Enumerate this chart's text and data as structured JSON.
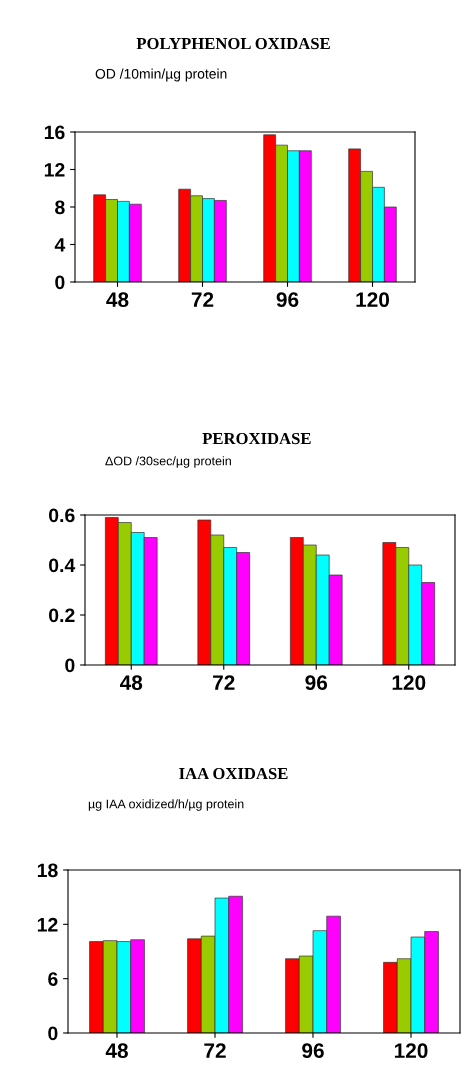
{
  "chart_data": [
    {
      "type": "bar",
      "title": "POLYPHENOL OXIDASE",
      "subtitle": "OD /10min/µg protein",
      "categories": [
        "48",
        "72",
        "96",
        "120"
      ],
      "series": [
        {
          "color": "#ff0000",
          "values": [
            9.3,
            9.9,
            15.7,
            14.2
          ]
        },
        {
          "color": "#99cc00",
          "values": [
            8.8,
            9.2,
            14.6,
            11.8
          ]
        },
        {
          "color": "#00ffff",
          "values": [
            8.6,
            8.9,
            14.0,
            10.1
          ]
        },
        {
          "color": "#ff00ff",
          "values": [
            8.3,
            8.7,
            14.0,
            8.0
          ]
        }
      ],
      "ylim": [
        0,
        16
      ],
      "yticks": [
        0,
        4,
        8,
        12,
        16
      ],
      "grid": false,
      "legend": false
    },
    {
      "type": "bar",
      "title": "PEROXIDASE",
      "subtitle": "ΔOD /30sec/µg protein",
      "categories": [
        "48",
        "72",
        "96",
        "120"
      ],
      "series": [
        {
          "color": "#ff0000",
          "values": [
            0.59,
            0.58,
            0.51,
            0.49
          ]
        },
        {
          "color": "#99cc00",
          "values": [
            0.57,
            0.52,
            0.48,
            0.47
          ]
        },
        {
          "color": "#00ffff",
          "values": [
            0.53,
            0.47,
            0.44,
            0.4
          ]
        },
        {
          "color": "#ff00ff",
          "values": [
            0.51,
            0.45,
            0.36,
            0.33
          ]
        }
      ],
      "ylim": [
        0,
        0.6
      ],
      "yticks": [
        0,
        0.2,
        0.4,
        0.6
      ],
      "grid": false,
      "legend": false
    },
    {
      "type": "bar",
      "title": "IAA OXIDASE",
      "subtitle": "µg IAA oxidized/h/µg protein",
      "categories": [
        "48",
        "72",
        "96",
        "120"
      ],
      "series": [
        {
          "color": "#ff0000",
          "values": [
            10.1,
            10.4,
            8.2,
            7.8
          ]
        },
        {
          "color": "#99cc00",
          "values": [
            10.2,
            10.7,
            8.5,
            8.2
          ]
        },
        {
          "color": "#00ffff",
          "values": [
            10.1,
            14.9,
            11.3,
            10.6
          ]
        },
        {
          "color": "#ff00ff",
          "values": [
            10.3,
            15.1,
            12.9,
            11.2
          ]
        }
      ],
      "ylim": [
        0,
        18
      ],
      "yticks": [
        0,
        6,
        12,
        18
      ],
      "grid": false,
      "legend": false
    }
  ]
}
